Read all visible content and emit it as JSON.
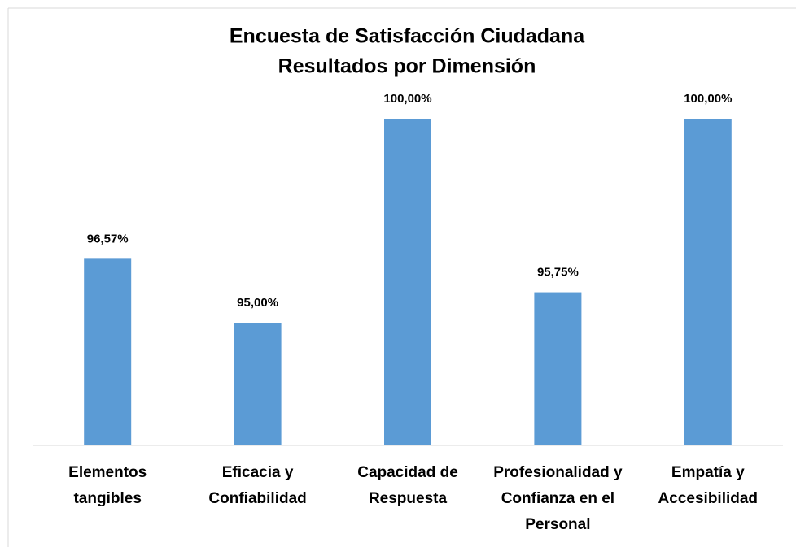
{
  "chart_data": {
    "type": "bar",
    "title": "Encuesta de Satisfacción Ciudadana",
    "subtitle": "Resultados por Dimensión",
    "categories": [
      "Elementos tangibles",
      "Eficacia y Confiabilidad",
      "Capacidad de Respuesta",
      "Profesionalidad y Confianza en el Personal",
      "Empatía y Accesibilidad"
    ],
    "values": [
      96.57,
      95,
      100,
      95.75,
      100
    ],
    "value_labels": [
      "96,57%",
      "95,00%",
      "100,00%",
      "95,75%",
      "100,00%"
    ],
    "color": "#5b9bd5",
    "ylim": [
      92,
      100
    ]
  }
}
